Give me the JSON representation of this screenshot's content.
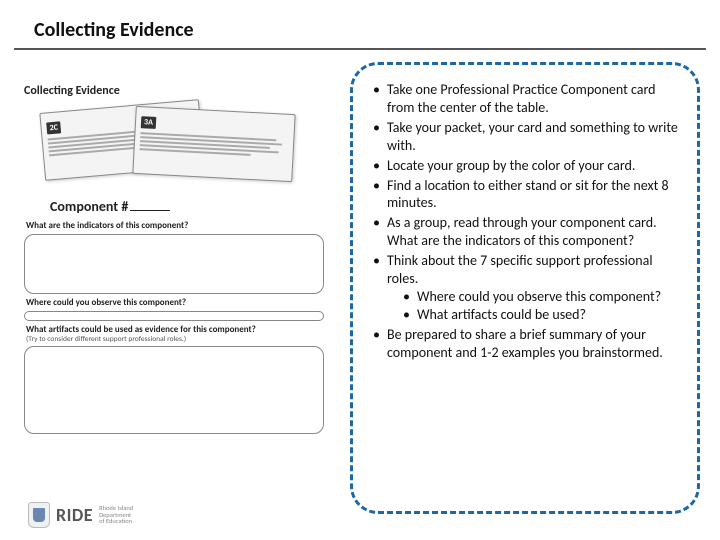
{
  "header": {
    "title": "Collecting Evidence"
  },
  "worksheet": {
    "title": "Collecting Evidence",
    "badge1": "2C",
    "badge2": "3A",
    "component_label": "Component #",
    "q1": "What are the indicators of this component?",
    "q2": "Where could you observe this component?",
    "q3": "What artifacts could be used as evidence for this component?",
    "q3sub": "(Try to consider different support professional roles.)"
  },
  "logo": {
    "text": "RIDE",
    "sub1": "Rhode Island",
    "sub2": "Department",
    "sub3": "of Education"
  },
  "callout": {
    "items": [
      "Take one Professional Practice Component card from the center of the table.",
      "Take your packet, your card and something to write with.",
      "Locate your group by the color of your card.",
      "Find a location to either stand or sit for the next 8 minutes.",
      "As a group, read through your component  card. What are the indicators of this component?",
      "Think about the 7 specific support professional roles.",
      "Be prepared to share a brief summary of your component and 1-2 examples you brainstormed."
    ],
    "sub_after_index": 5,
    "sub_items": [
      "Where could you observe this component?",
      "What artifacts could be used?"
    ]
  },
  "colors": {
    "accent": "#1d67a6",
    "text": "#111111",
    "border": "#555555"
  }
}
